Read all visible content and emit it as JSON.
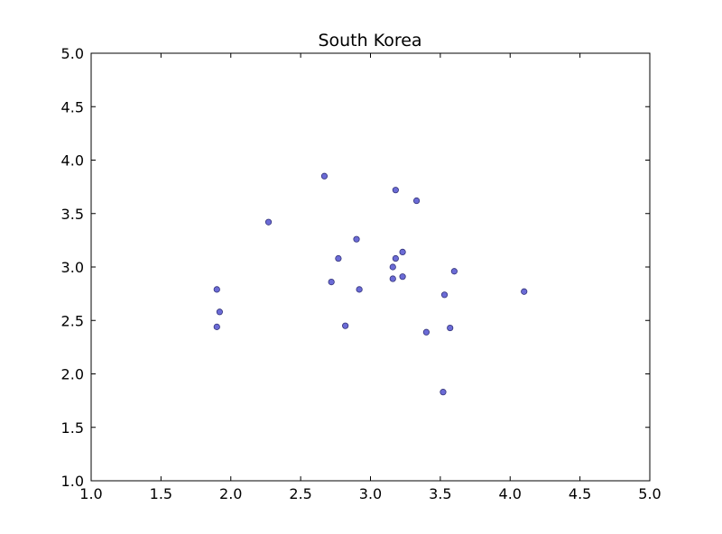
{
  "chart_data": {
    "type": "scatter",
    "title": "South Korea",
    "xlabel": "",
    "ylabel": "",
    "xlim": [
      1.0,
      5.0
    ],
    "ylim": [
      1.0,
      5.0
    ],
    "xticks": [
      "1.0",
      "1.5",
      "2.0",
      "2.5",
      "3.0",
      "3.5",
      "4.0",
      "4.5",
      "5.0"
    ],
    "yticks": [
      "1.0",
      "1.5",
      "2.0",
      "2.5",
      "3.0",
      "3.5",
      "4.0",
      "4.5",
      "5.0"
    ],
    "grid": false,
    "marker_color": "#6b6bd6",
    "marker_edge_color": "#33337a",
    "points": [
      {
        "x": 2.67,
        "y": 3.85
      },
      {
        "x": 3.18,
        "y": 3.72
      },
      {
        "x": 3.33,
        "y": 3.62
      },
      {
        "x": 2.27,
        "y": 3.42
      },
      {
        "x": 2.9,
        "y": 3.26
      },
      {
        "x": 3.23,
        "y": 3.14
      },
      {
        "x": 2.77,
        "y": 3.08
      },
      {
        "x": 3.18,
        "y": 3.08
      },
      {
        "x": 3.16,
        "y": 3.0
      },
      {
        "x": 3.6,
        "y": 2.96
      },
      {
        "x": 3.23,
        "y": 2.91
      },
      {
        "x": 3.16,
        "y": 2.89
      },
      {
        "x": 2.72,
        "y": 2.86
      },
      {
        "x": 1.9,
        "y": 2.79
      },
      {
        "x": 2.92,
        "y": 2.79
      },
      {
        "x": 4.1,
        "y": 2.77
      },
      {
        "x": 3.53,
        "y": 2.74
      },
      {
        "x": 1.92,
        "y": 2.58
      },
      {
        "x": 2.82,
        "y": 2.45
      },
      {
        "x": 1.9,
        "y": 2.44
      },
      {
        "x": 3.57,
        "y": 2.43
      },
      {
        "x": 3.4,
        "y": 2.39
      },
      {
        "x": 3.52,
        "y": 1.83
      }
    ]
  }
}
